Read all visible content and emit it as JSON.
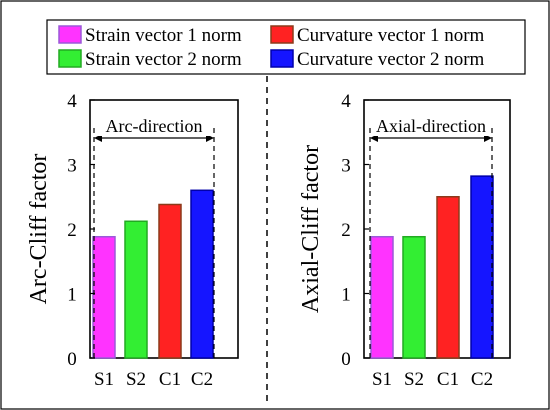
{
  "legend": {
    "items": [
      {
        "label": "Strain vector 1 norm",
        "color": "#ff33ff",
        "edge": "#9b59d9"
      },
      {
        "label": "Curvature vector 1 norm",
        "color": "#ff2222",
        "edge": "#8b3a1a"
      },
      {
        "label": "Strain vector 2 norm",
        "color": "#33ee33",
        "edge": "#22aa22"
      },
      {
        "label": "Curvature vector 2 norm",
        "color": "#1515ff",
        "edge": "#0000aa"
      }
    ]
  },
  "chart_data": [
    {
      "type": "bar",
      "categories": [
        "S1",
        "S2",
        "C1",
        "C2"
      ],
      "values": [
        1.88,
        2.12,
        2.38,
        2.6
      ],
      "colors": [
        "#ff33ff",
        "#33ee33",
        "#ff2222",
        "#1515ff"
      ],
      "edges": [
        "#9b59d9",
        "#22aa22",
        "#8b3a1a",
        "#0000aa"
      ],
      "ylabel": "Arc-Cliff factor",
      "ylim": [
        0,
        4
      ],
      "yticks": [
        0,
        1,
        2,
        3,
        4
      ],
      "annotation": "Arc-direction",
      "grid": false
    },
    {
      "type": "bar",
      "categories": [
        "S1",
        "S2",
        "C1",
        "C2"
      ],
      "values": [
        1.88,
        1.88,
        2.5,
        2.82
      ],
      "colors": [
        "#ff33ff",
        "#33ee33",
        "#ff2222",
        "#1515ff"
      ],
      "edges": [
        "#9b59d9",
        "#22aa22",
        "#8b3a1a",
        "#0000aa"
      ],
      "ylabel": "Axial-Cliff factor",
      "ylim": [
        0,
        4
      ],
      "yticks": [
        0,
        1,
        2,
        3,
        4
      ],
      "annotation": "Axial-direction",
      "grid": false
    }
  ]
}
